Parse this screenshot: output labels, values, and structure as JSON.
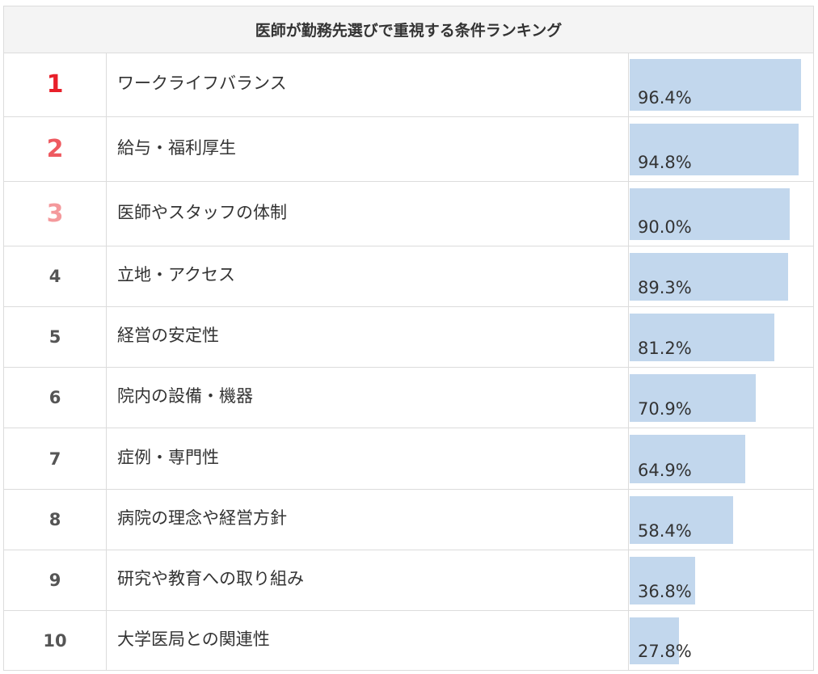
{
  "chart_data": {
    "type": "table",
    "title": "医師が勤務先選びで重視する条件ランキング",
    "rows": [
      {
        "rank": "1",
        "label": "ワークライフバランス",
        "value": 96.4,
        "value_label": "96.4%"
      },
      {
        "rank": "2",
        "label": "給与・福利厚生",
        "value": 94.8,
        "value_label": "94.8%"
      },
      {
        "rank": "3",
        "label": "医師やスタッフの体制",
        "value": 90.0,
        "value_label": "90.0%"
      },
      {
        "rank": "4",
        "label": "立地・アクセス",
        "value": 89.3,
        "value_label": "89.3%"
      },
      {
        "rank": "5",
        "label": "経営の安定性",
        "value": 81.2,
        "value_label": "81.2%"
      },
      {
        "rank": "6",
        "label": "院内の設備・機器",
        "value": 70.9,
        "value_label": "70.9%"
      },
      {
        "rank": "7",
        "label": "症例・専門性",
        "value": 64.9,
        "value_label": "64.9%"
      },
      {
        "rank": "8",
        "label": "病院の理念や経営方針",
        "value": 58.4,
        "value_label": "58.4%"
      },
      {
        "rank": "9",
        "label": "研究や教育への取り組み",
        "value": 36.8,
        "value_label": "36.8%"
      },
      {
        "rank": "10",
        "label": "大学医局との関連性",
        "value": 27.8,
        "value_label": "27.8%"
      }
    ],
    "value_max": 100,
    "colors": {
      "bar": "#c2d7ed",
      "rank_1": "#e8202a",
      "rank_2": "#ee5a60",
      "rank_3": "#f4999c",
      "rank_other": "#555555"
    }
  }
}
